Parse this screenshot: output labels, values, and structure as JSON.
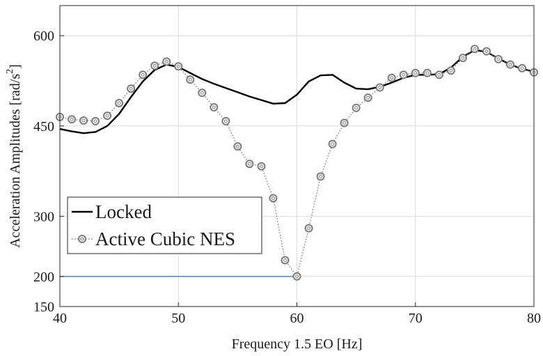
{
  "chart_data": {
    "type": "line",
    "title": "",
    "xlabel": "Frequency 1.5 EO [Hz]",
    "ylabel": "Acceleration Amplitudes [rad/s",
    "ylabel_sup": "2",
    "ylabel_end": "]",
    "xlim": [
      40,
      80
    ],
    "ylim": [
      150,
      650
    ],
    "xticks": [
      40,
      50,
      60,
      70,
      80
    ],
    "yticks": [
      150,
      200,
      300,
      450,
      600
    ],
    "grid": true,
    "legend_position": "lower-left",
    "series": [
      {
        "name": "Locked",
        "style": "solid",
        "color": "#000000",
        "x": [
          40,
          41,
          42,
          43,
          44,
          45,
          46,
          47,
          48,
          49,
          50,
          51,
          52,
          53,
          54,
          55,
          56,
          57,
          58,
          59,
          60,
          61,
          62,
          63,
          64,
          65,
          66,
          67,
          68,
          69,
          70,
          71,
          72,
          73,
          74,
          75,
          76,
          77,
          78,
          79,
          80
        ],
        "y": [
          445,
          441,
          438,
          440,
          450,
          470,
          498,
          524,
          543,
          552,
          548,
          538,
          528,
          520,
          513,
          506,
          499,
          493,
          487,
          488,
          502,
          524,
          534,
          535,
          522,
          512,
          511,
          515,
          522,
          530,
          535,
          535,
          536,
          547,
          565,
          576,
          573,
          562,
          552,
          545,
          540
        ]
      },
      {
        "name": "Active Cubic NES",
        "style": "dotted-circle",
        "color": "#7a7a7a",
        "x": [
          40,
          41,
          42,
          43,
          44,
          45,
          46,
          47,
          48,
          49,
          50,
          51,
          52,
          53,
          54,
          55,
          56,
          57,
          58,
          59,
          60,
          61,
          62,
          63,
          64,
          65,
          66,
          67,
          68,
          69,
          70,
          71,
          72,
          73,
          74,
          75,
          76,
          77,
          78,
          79,
          80
        ],
        "y": [
          465,
          461,
          459,
          458,
          467,
          488,
          512,
          535,
          550,
          557,
          549,
          527,
          505,
          481,
          458,
          416,
          387,
          383,
          330,
          227,
          200,
          280,
          366,
          420,
          455,
          480,
          497,
          514,
          530,
          535,
          538,
          538,
          535,
          542,
          563,
          578,
          574,
          561,
          552,
          546,
          539
        ]
      }
    ],
    "annotations": [
      {
        "type": "hline",
        "y": 200,
        "x_from": 40,
        "x_to": 60,
        "color": "#4f81bd"
      }
    ]
  }
}
